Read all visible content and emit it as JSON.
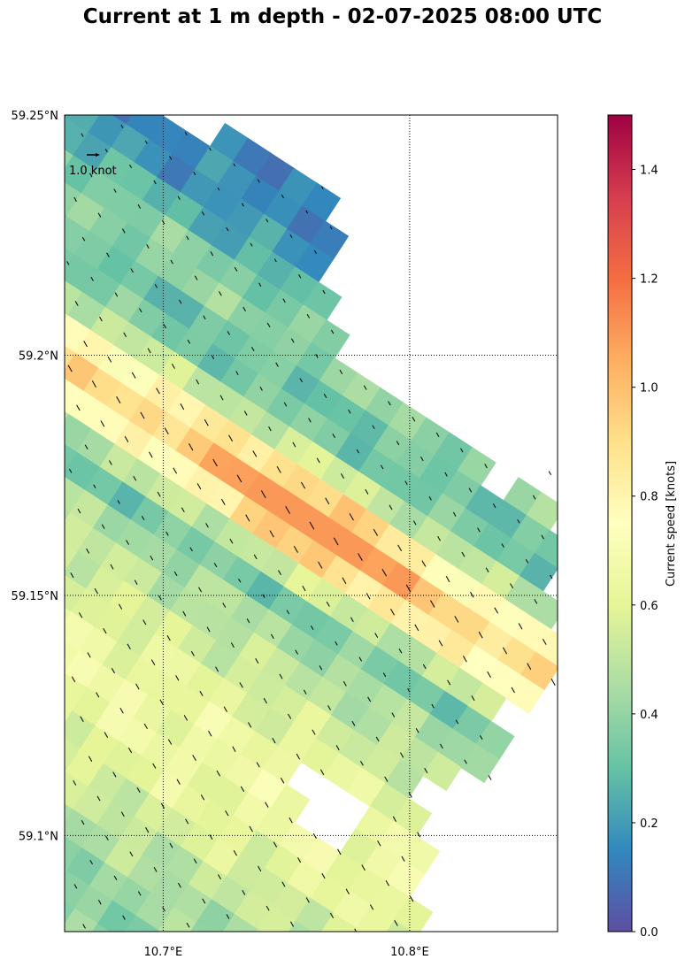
{
  "title": "Current at 1 m depth - 02-07-2025 08:00 UTC",
  "map": {
    "lon_range": [
      10.66,
      10.86
    ],
    "lat_range": [
      59.08,
      59.25
    ],
    "lat_ticks": [
      {
        "value": 59.25,
        "label": "59.25°N"
      },
      {
        "value": 59.2,
        "label": "59.2°N"
      },
      {
        "value": 59.15,
        "label": "59.15°N"
      },
      {
        "value": 59.1,
        "label": "59.1°N"
      }
    ],
    "lon_ticks": [
      {
        "value": 10.7,
        "label": "10.7°E"
      },
      {
        "value": 10.8,
        "label": "10.8°E"
      }
    ],
    "gridlines": "dotted",
    "quiver_key": {
      "label": "1.0 knot",
      "value_knots": 1.0
    },
    "colormap": "Spectral_r",
    "colormap_stops": [
      "#5e4fa2",
      "#3288bd",
      "#66c2a5",
      "#abdda4",
      "#e6f598",
      "#ffffbf",
      "#fee08b",
      "#fdae61",
      "#f46d43",
      "#d53e4f",
      "#9e0142"
    ]
  },
  "colorbar": {
    "label": "Current speed [knots]",
    "range": [
      0.0,
      1.5
    ],
    "ticks": [
      {
        "value": 0.0,
        "label": "0.0"
      },
      {
        "value": 0.2,
        "label": "0.2"
      },
      {
        "value": 0.4,
        "label": "0.4"
      },
      {
        "value": 0.6,
        "label": "0.6"
      },
      {
        "value": 0.8,
        "label": "0.8"
      },
      {
        "value": 1.0,
        "label": "1.0"
      },
      {
        "value": 1.2,
        "label": "1.2"
      },
      {
        "value": 1.4,
        "label": "1.4"
      }
    ]
  }
}
